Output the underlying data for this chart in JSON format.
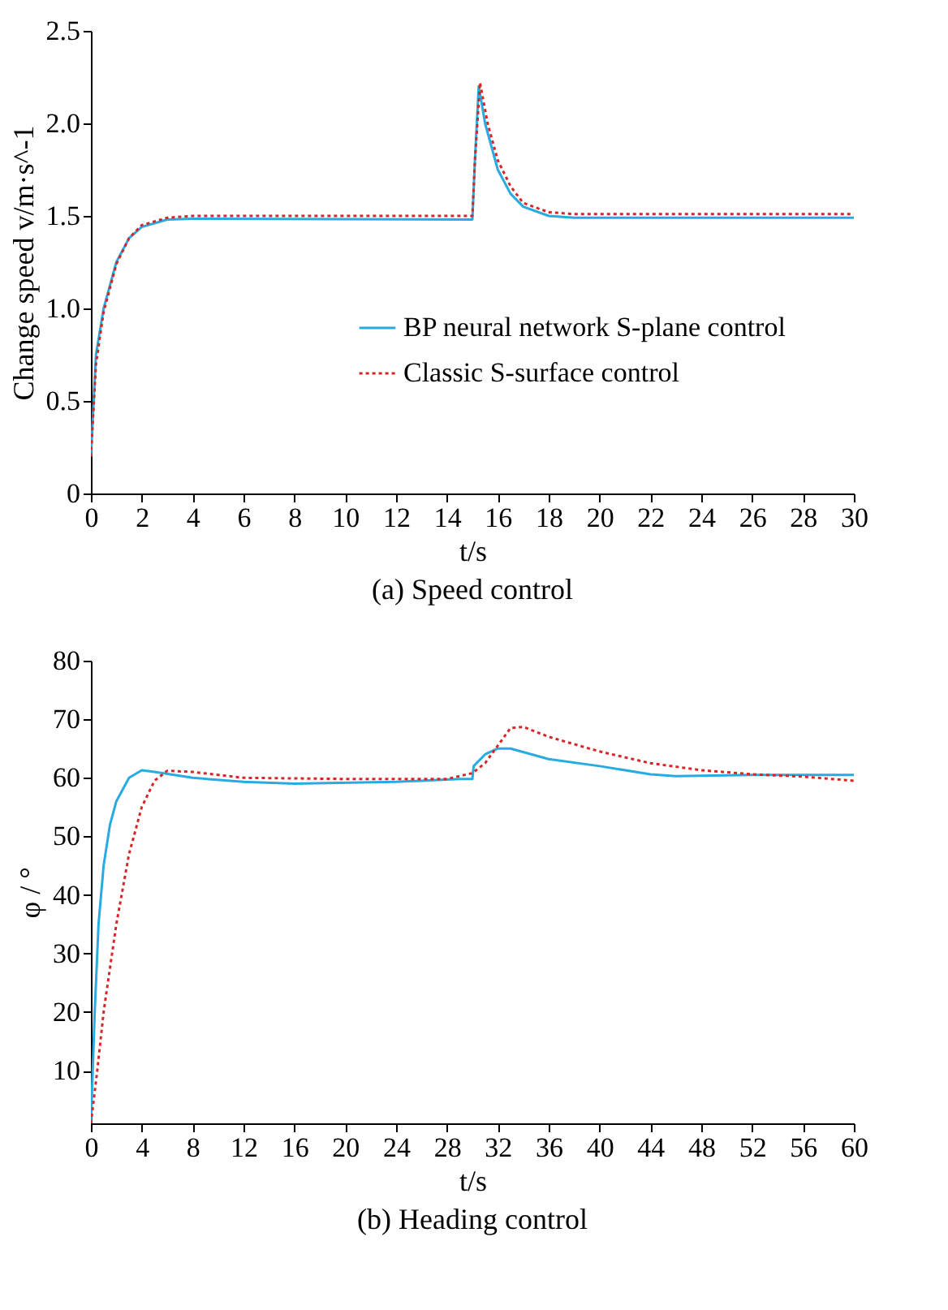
{
  "chart_data": [
    {
      "type": "line",
      "title": "(a) Speed control",
      "xlabel": "t/s",
      "ylabel": "Change speed v/m·s^-1",
      "xlim": [
        0,
        30
      ],
      "xticks": [
        0,
        2,
        4,
        6,
        8,
        10,
        12,
        14,
        16,
        18,
        20,
        22,
        24,
        26,
        28,
        30
      ],
      "ylim": [
        0,
        2.5
      ],
      "yticks": [
        0,
        0.5,
        {
          "value": 1,
          "label": "1.0"
        },
        1.5,
        {
          "value": 2,
          "label": "2.0"
        },
        2.5
      ],
      "grid": false,
      "legend": "right",
      "marker": "none",
      "series": [
        {
          "name": "BP neural network S-plane control",
          "color": "#29abe2",
          "line_style": "solid",
          "x": [
            0,
            0.2,
            0.5,
            1,
            1.5,
            2,
            3,
            4,
            15,
            15.1,
            15.25,
            15.5,
            16,
            16.5,
            17,
            18,
            19,
            30
          ],
          "values": [
            0.2,
            0.75,
            1.0,
            1.25,
            1.38,
            1.44,
            1.48,
            1.485,
            1.48,
            1.8,
            2.2,
            2.0,
            1.75,
            1.62,
            1.55,
            1.5,
            1.49,
            1.49
          ]
        },
        {
          "name": "Classic S-surface control",
          "color": "#d62728",
          "line_style": "dotted",
          "x": [
            0,
            0.2,
            0.5,
            1,
            1.5,
            2,
            3,
            4,
            15,
            15.1,
            15.3,
            15.6,
            16,
            16.5,
            17,
            18,
            19,
            30
          ],
          "values": [
            0.2,
            0.7,
            0.98,
            1.24,
            1.38,
            1.45,
            1.49,
            1.5,
            1.5,
            1.8,
            2.22,
            2.0,
            1.8,
            1.66,
            1.57,
            1.52,
            1.51,
            1.51
          ]
        }
      ]
    },
    {
      "type": "line",
      "title": "(b) Heading control",
      "xlabel": "t/s",
      "ylabel": "φ / °",
      "xlim": [
        0,
        60
      ],
      "xticks": [
        0,
        4,
        8,
        12,
        16,
        20,
        24,
        28,
        32,
        36,
        40,
        44,
        48,
        52,
        56,
        60
      ],
      "ylim": [
        1,
        80
      ],
      "yticks": [
        10,
        20,
        30,
        40,
        50,
        60,
        70,
        80
      ],
      "grid": false,
      "legend": "right",
      "marker": "none",
      "series": [
        {
          "name": "BP neural network S-plane control",
          "color": "#29abe2",
          "line_style": "solid",
          "x": [
            0,
            0.3,
            0.6,
            1,
            1.5,
            2,
            3,
            4,
            5,
            8,
            12,
            16,
            24,
            29,
            30,
            30.1,
            31,
            32,
            33,
            36,
            40,
            44,
            46,
            52,
            60
          ],
          "values": [
            1,
            20,
            35,
            45,
            52,
            56,
            60,
            61.3,
            61,
            60,
            59.3,
            59,
            59.3,
            59.8,
            59.8,
            62,
            64,
            65,
            65,
            63.2,
            62,
            60.6,
            60.3,
            60.5,
            60.5
          ]
        },
        {
          "name": "Classic S-surface control",
          "color": "#d62728",
          "line_style": "dotted",
          "x": [
            0,
            0.5,
            1,
            2,
            3,
            4,
            5,
            6,
            8,
            12,
            20,
            28,
            30,
            31,
            32,
            33,
            34,
            36,
            40,
            44,
            48,
            52,
            56,
            60
          ],
          "values": [
            1,
            10,
            20,
            35,
            47,
            55,
            59.5,
            61.2,
            61,
            60,
            59.8,
            59.8,
            60.8,
            62.5,
            65.5,
            68.5,
            68.7,
            67,
            64.5,
            62.5,
            61.3,
            60.6,
            60.2,
            59.5
          ]
        }
      ]
    }
  ]
}
